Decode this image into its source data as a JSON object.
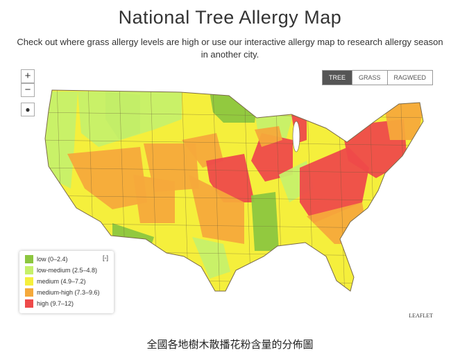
{
  "header": {
    "title": "National Tree Allergy Map",
    "subtitle": "Check out where grass allergy levels are high or use our interactive allergy map to research allergy season in another city."
  },
  "zoom": {
    "in": "+",
    "out": "−"
  },
  "tabs": [
    "TREE",
    "GRASS",
    "RAGWEED"
  ],
  "legend": {
    "toggle": "[-]",
    "items": [
      {
        "label": "low (0–2.4)",
        "color": "#8cc63f"
      },
      {
        "label": "low-medium (2.5–4.8)",
        "color": "#c6f06a"
      },
      {
        "label": "medium (4.9–7.2)",
        "color": "#f5ef3c"
      },
      {
        "label": "medium-high (7.3–9.6)",
        "color": "#f5a93b"
      },
      {
        "label": "high (9.7–12)",
        "color": "#ee4a4a"
      }
    ]
  },
  "attribution": "LEAFLET",
  "caption": "全國各地樹木散播花粉含量的分佈圖"
}
